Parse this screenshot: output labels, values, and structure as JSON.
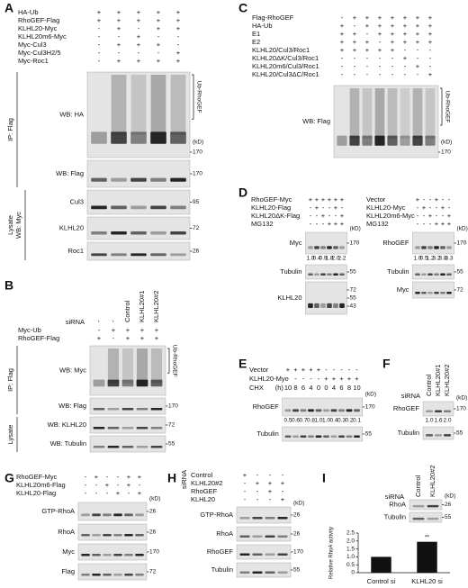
{
  "panels": [
    {
      "letter": "A",
      "unit": "(kD)",
      "conditions": [
        {
          "label": "HA-Ub",
          "signs": [
            "+",
            "+",
            "+",
            "+",
            "+"
          ]
        },
        {
          "label": "RhoGEF-Flag",
          "signs": [
            "+",
            "+",
            "+",
            "+",
            "+"
          ]
        },
        {
          "label": "KLHL20-Myc",
          "signs": [
            "-",
            "+",
            "-",
            "+",
            "+"
          ]
        },
        {
          "label": "KLHL20m6-Myc",
          "signs": [
            "-",
            "-",
            "+",
            "-",
            "-"
          ]
        },
        {
          "label": "Myc-Cul3",
          "signs": [
            "-",
            "+",
            "+",
            "+",
            "-"
          ]
        },
        {
          "label": "Myc-Cul3H2/5",
          "signs": [
            "-",
            "-",
            "-",
            "-",
            "+"
          ]
        },
        {
          "label": "Myc-Roc1",
          "signs": [
            "-",
            "+",
            "+",
            "+",
            "+"
          ]
        }
      ],
      "blots": [
        {
          "label": "WB: HA",
          "markers": [
            "170"
          ],
          "bracket": "Ub-RhoGEF"
        },
        {
          "label": "WB: Flag",
          "markers": [
            "170"
          ]
        },
        {
          "label": "Cul3",
          "markers": [
            "95"
          ]
        },
        {
          "label": "KLHL20",
          "markers": [
            "72"
          ]
        },
        {
          "label": "Roc1",
          "markers": [
            "26"
          ]
        }
      ],
      "groups": [
        {
          "label": "IP: Flag",
          "blots": [
            0,
            1
          ]
        },
        {
          "label": "Lysate",
          "sub": "WB: Myc",
          "blots": [
            2,
            4
          ]
        }
      ]
    },
    {
      "letter": "B",
      "header": {
        "label": "siRNA",
        "columns": [
          "-",
          "-",
          "Control",
          "KLHL20#1",
          "KLHL20#2"
        ]
      },
      "conditions": [
        {
          "label": "Myc-Ub",
          "signs": [
            "-",
            "+",
            "+",
            "+",
            "+"
          ]
        },
        {
          "label": "RhoGEF-Flag",
          "signs": [
            "+",
            "-",
            "+",
            "+",
            "+"
          ]
        }
      ],
      "blots": [
        {
          "label": "WB: Myc",
          "markers": [],
          "bracket": "Ub-RhoGEF"
        },
        {
          "label": "WB: Flag",
          "markers": [
            "170"
          ]
        },
        {
          "label": "WB: KLHL20",
          "markers": [
            "72"
          ]
        },
        {
          "label": "WB: Tubulin",
          "markers": [
            "55"
          ]
        }
      ],
      "groups": [
        {
          "label": "IP: Flag",
          "blots": [
            0,
            1
          ]
        },
        {
          "label": "Lysate",
          "blots": [
            2,
            3
          ]
        }
      ]
    },
    {
      "letter": "C",
      "unit": "(kD)",
      "conditions": [
        {
          "label": "Flag-RhoGEF",
          "signs": [
            "-",
            "+",
            "+",
            "+",
            "+",
            "+",
            "+",
            "+"
          ]
        },
        {
          "label": "HA-Ub",
          "signs": [
            "+",
            "-",
            "+",
            "+",
            "+",
            "+",
            "+",
            "+"
          ]
        },
        {
          "label": "E1",
          "signs": [
            "+",
            "+",
            "-",
            "+",
            "+",
            "+",
            "+",
            "+"
          ]
        },
        {
          "label": "E2",
          "signs": [
            "+",
            "+",
            "+",
            "-",
            "+",
            "+",
            "+",
            "+"
          ]
        },
        {
          "label": "KLHL20/Cul3/Roc1",
          "signs": [
            "+",
            "+",
            "+",
            "+",
            "+",
            "-",
            "-",
            "-"
          ]
        },
        {
          "label": "KLHL20ΔK/Cul3/Roc1",
          "signs": [
            "-",
            "-",
            "-",
            "-",
            "-",
            "+",
            "-",
            "-"
          ]
        },
        {
          "label": "KLHL20m6/Cul3/Roc1",
          "signs": [
            "-",
            "-",
            "-",
            "-",
            "-",
            "-",
            "+",
            "-"
          ]
        },
        {
          "label": "KLHL20/Cul3ΔC/Roc1",
          "signs": [
            "-",
            "-",
            "-",
            "-",
            "-",
            "-",
            "-",
            "+"
          ]
        }
      ],
      "blots": [
        {
          "label": "WB: Flag",
          "markers": [
            "170"
          ],
          "bracket": "Ub-RhoGEF"
        }
      ]
    },
    {
      "letter": "D",
      "unit": "(kD)",
      "conditions": [
        {
          "label": "RhoGEF-Myc",
          "signs": [
            "+",
            "+",
            "+",
            "+",
            "+",
            "+"
          ]
        },
        {
          "label": "KLHL20-Flag",
          "signs": [
            "-",
            "+",
            "-",
            "-",
            "+",
            "-"
          ]
        },
        {
          "label": "KLHL20ΔK-Flag",
          "signs": [
            "-",
            "-",
            "+",
            "-",
            "-",
            "+"
          ]
        },
        {
          "label": "MG132",
          "signs": [
            "-",
            "-",
            "-",
            "+",
            "+",
            "+"
          ]
        }
      ],
      "blots": [
        {
          "label": "Myc",
          "markers": [
            "170"
          ],
          "numbers": [
            "1.0",
            "0.4",
            "0.9",
            "1.8",
            "2.0",
            "2.2"
          ]
        },
        {
          "label": "Tubulin",
          "markers": [
            "55"
          ]
        },
        {
          "label": "KLHL20",
          "markers": [
            "72",
            "55",
            "43"
          ]
        }
      ]
    },
    {
      "unit": "(kD)",
      "conditions": [
        {
          "label": "Vector",
          "signs": [
            "+",
            "-",
            "-",
            "+",
            "-",
            "-"
          ]
        },
        {
          "label": "KLHL20-Myc",
          "signs": [
            "-",
            "+",
            "-",
            "-",
            "+",
            "-"
          ]
        },
        {
          "label": "KLHL20m6-Myc",
          "signs": [
            "-",
            "-",
            "+",
            "-",
            "-",
            "+"
          ]
        },
        {
          "label": "MG132",
          "signs": [
            "-",
            "-",
            "-",
            "+",
            "+",
            "+"
          ]
        }
      ],
      "blots": [
        {
          "label": "RhoGEF",
          "markers": [
            "170"
          ],
          "numbers": [
            "1.0",
            "0.5",
            "1.2",
            "3.2",
            "3.8",
            "3.3"
          ]
        },
        {
          "label": "Tubulin",
          "markers": [
            "55"
          ]
        },
        {
          "label": "Myc",
          "markers": [
            "72"
          ]
        }
      ]
    },
    {
      "letter": "E",
      "unit": "(kD)",
      "conditions": [
        {
          "label": "Vector",
          "signs": [
            "+",
            "+",
            "+",
            "+",
            "+",
            "-",
            "-",
            "-",
            "-",
            "-"
          ]
        },
        {
          "label": "KLHL20-Myc",
          "signs": [
            "-",
            "-",
            "-",
            "-",
            "-",
            "+",
            "+",
            "+",
            "+",
            "+"
          ]
        },
        {
          "label": "CHX",
          "prefix": "(h)",
          "signs": [
            "10",
            "8",
            "6",
            "4",
            "0",
            "0",
            "4",
            "6",
            "8",
            "10"
          ]
        }
      ],
      "blots": [
        {
          "label": "RhoGEF",
          "markers": [
            "170"
          ],
          "numbers": [
            "0.5",
            "0.6",
            "0.7",
            "0.8",
            "1.0",
            "1.0",
            "0.4",
            "0.3",
            "0.2",
            "0.1"
          ]
        },
        {
          "label": "Tubulin",
          "markers": [
            "55"
          ]
        }
      ]
    },
    {
      "letter": "F",
      "unit": "(kD)",
      "header": {
        "label": "siRNA",
        "columns": [
          "Control",
          "KLHL20#1",
          "KLHL20#2"
        ]
      },
      "conditions": [],
      "blots": [
        {
          "label": "RhoGEF",
          "markers": [
            "170"
          ],
          "numbers": [
            "1.0",
            "1.6",
            "2.0"
          ]
        },
        {
          "label": "Tubulin",
          "markers": [
            "55"
          ]
        }
      ]
    },
    {
      "letter": "G",
      "unit": "(kD)",
      "conditions": [
        {
          "label": "RhoGEF-Myc",
          "signs": [
            "-",
            "+",
            "-",
            "-",
            "+",
            "+"
          ]
        },
        {
          "label": "KLHL20m6-Flag",
          "signs": [
            "-",
            "-",
            "+",
            "-",
            "+",
            "-"
          ]
        },
        {
          "label": "KLHL20-Flag",
          "signs": [
            "-",
            "-",
            "-",
            "+",
            "-",
            "+"
          ]
        }
      ],
      "blots": [
        {
          "label": "GTP-RhoA",
          "markers": [
            "26"
          ]
        },
        {
          "label": "RhoA",
          "markers": [
            "26"
          ]
        },
        {
          "label": "Myc",
          "markers": [
            "170"
          ]
        },
        {
          "label": "Flag",
          "markers": [
            "72"
          ]
        }
      ]
    },
    {
      "letter": "H",
      "unit": "(kD)",
      "conditions_label": "siRNA",
      "conditions": [
        {
          "label": "Control",
          "signs": [
            "+",
            "-",
            "-",
            "-"
          ]
        },
        {
          "label": "KLHL20#2",
          "signs": [
            "-",
            "+",
            "+",
            "+"
          ]
        },
        {
          "label": "RhoGEF",
          "signs": [
            "-",
            "-",
            "+",
            "-"
          ]
        },
        {
          "label": "KLHL20",
          "signs": [
            "-",
            "-",
            "-",
            "+"
          ]
        }
      ],
      "blots": [
        {
          "label": "GTP-RhoA",
          "markers": [
            "26"
          ]
        },
        {
          "label": "RhoA",
          "markers": [
            "26"
          ]
        },
        {
          "label": "RhoGEF",
          "markers": [
            "170"
          ]
        },
        {
          "label": "Tubulin",
          "markers": [
            "55"
          ]
        }
      ]
    },
    {
      "letter": "I",
      "unit": "(kD)",
      "header": {
        "label": "siRNA",
        "columns": [
          "Control",
          "KLHL20#2"
        ]
      },
      "conditions": [],
      "blots": [
        {
          "label": "RhoA",
          "markers": [
            "26"
          ]
        },
        {
          "label": "Tubulin",
          "markers": [
            "55"
          ]
        }
      ],
      "chart": {
        "type": "bar",
        "ylabel": "Relative RhoA activity",
        "categories": [
          "Control si",
          "KLHL20 si"
        ],
        "values": [
          1,
          1.95
        ],
        "color": "#111111",
        "ylim": [
          0,
          2.5
        ],
        "yticks": [
          0,
          0.5,
          {
            "value": 1,
            "label": "1.0"
          },
          1.5,
          {
            "value": 2,
            "label": "2.0"
          },
          2.5
        ],
        "annotation": "**"
      }
    }
  ]
}
